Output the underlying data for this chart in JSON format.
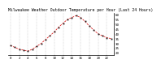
{
  "title": "Milwaukee Weather Outdoor Temperature per Hour (Last 24 Hours)",
  "hours": [
    0,
    1,
    2,
    3,
    4,
    5,
    6,
    7,
    8,
    9,
    10,
    11,
    12,
    13,
    14,
    15,
    16,
    17,
    18,
    19,
    20,
    21,
    22,
    23
  ],
  "temps": [
    28,
    26,
    24,
    23,
    22,
    24,
    27,
    30,
    34,
    38,
    42,
    47,
    51,
    55,
    57,
    59,
    57,
    53,
    48,
    44,
    40,
    38,
    36,
    35
  ],
  "line_color": "#dd0000",
  "marker_color": "#222222",
  "bg_color": "#ffffff",
  "ylim": [
    18,
    62
  ],
  "yticks": [
    20,
    25,
    30,
    35,
    40,
    45,
    50,
    55,
    60
  ],
  "ytick_labels": [
    "20",
    "25",
    "30",
    "35",
    "40",
    "45",
    "50",
    "55",
    "60"
  ],
  "grid_color": "#999999",
  "title_fontsize": 3.5,
  "tick_fontsize": 3.0,
  "xlim": [
    -0.5,
    23.5
  ],
  "xtick_step": 2
}
